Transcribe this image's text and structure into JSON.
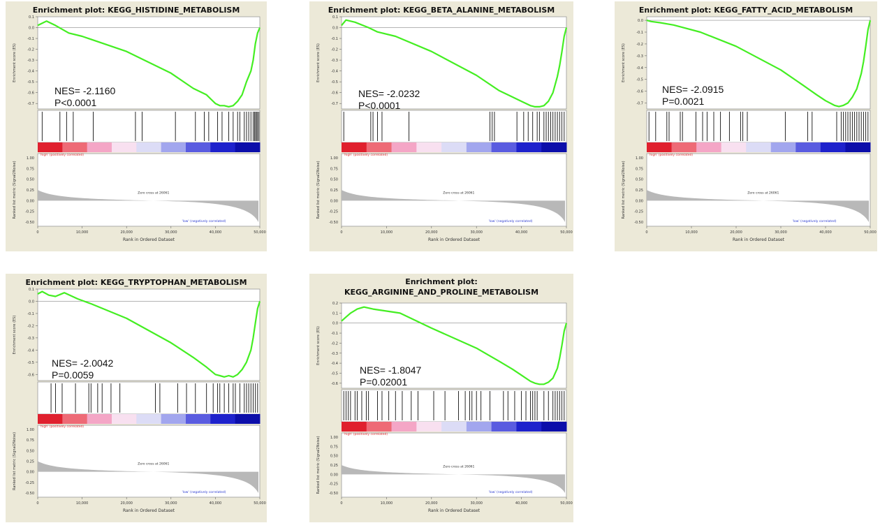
{
  "colors": {
    "panel_bg": "#ece9d8",
    "es_curve": "#44ee22",
    "positive_label": "#e03030",
    "negative_label": "#2a3ad0",
    "ranked_fill": "#b8b8b8",
    "gradient": [
      "#e0202e",
      "#ee6a76",
      "#f4a6c6",
      "#f8e0f0",
      "#dcdcf6",
      "#a2a6ee",
      "#5a5ce0",
      "#1e22cc",
      "#0c0eaa"
    ]
  },
  "shared_labels": {
    "es_ylabel": "Enrichment score (ES)",
    "rank_ylabel": "Ranked list metric (Signal2Noise)",
    "xlabel": "Rank in Ordered Dataset",
    "positive_label": "'high' (positively correlated)",
    "negative_label": "'low' (negatively correlated)",
    "zero_cross": "Zero cross at 26061"
  },
  "chart_data": [
    {
      "type": "line",
      "title": "Enrichment plot: KEGG_HISTIDINE_METABOLISM",
      "title_lines": [
        "Enrichment plot: KEGG_HISTIDINE_METABOLISM"
      ],
      "nes": "NES= -2.1160",
      "pval": "P<0.0001",
      "es_ylim": [
        -0.75,
        0.1
      ],
      "es_ticks": [
        "0.1",
        "0.0",
        "-0.1",
        "-0.2",
        "-0.3",
        "-0.4",
        "-0.5",
        "-0.6",
        "-0.7"
      ],
      "es_tick_values": [
        0.1,
        0.0,
        -0.1,
        -0.2,
        -0.3,
        -0.4,
        -0.5,
        -0.6,
        -0.7
      ],
      "x": [
        0,
        1000,
        2000,
        4000,
        7000,
        10000,
        20000,
        30000,
        35000,
        38000,
        39000,
        40000,
        41000,
        42000,
        43000,
        44000,
        45000,
        46000,
        47000,
        48000,
        48500,
        49000,
        49500,
        50000
      ],
      "es": [
        0.02,
        0.04,
        0.06,
        0.02,
        -0.05,
        -0.08,
        -0.22,
        -0.42,
        -0.56,
        -0.62,
        -0.66,
        -0.7,
        -0.72,
        -0.72,
        -0.73,
        -0.72,
        -0.68,
        -0.62,
        -0.5,
        -0.4,
        -0.3,
        -0.15,
        -0.05,
        0.0
      ],
      "hits": [
        1000,
        5000,
        6500,
        8000,
        12500,
        22000,
        23500,
        31000,
        35500,
        37500,
        38500,
        40500,
        41500,
        43000,
        44000,
        45000,
        45500,
        46500,
        47000,
        47500,
        48000,
        48500,
        48800,
        49000,
        49300,
        49500,
        49800
      ],
      "rank_ticks": [
        "1.00",
        "0.75",
        "0.50",
        "0.25",
        "0.00",
        "-0.25",
        "-0.50"
      ],
      "rank_tick_values": [
        1.0,
        0.75,
        0.5,
        0.25,
        0.0,
        -0.25,
        -0.5
      ],
      "x_ticks": [
        "0",
        "10,000",
        "20,000",
        "30,000",
        "40,000",
        "50,000"
      ],
      "x_tick_values": [
        0,
        10000,
        20000,
        30000,
        40000,
        50000
      ],
      "xlim": [
        0,
        50000
      ]
    },
    {
      "type": "line",
      "title": "Enrichment plot: KEGG_BETA_ALANINE_METABOLISM",
      "title_lines": [
        "Enrichment plot: KEGG_BETA_ALANINE_METABOLISM"
      ],
      "nes": "NES= -2.0232",
      "pval": "P<0.0001",
      "es_ylim": [
        -0.75,
        0.1
      ],
      "es_ticks": [
        "0.1",
        "0.0",
        "-0.1",
        "-0.2",
        "-0.3",
        "-0.4",
        "-0.5",
        "-0.6",
        "-0.7"
      ],
      "es_tick_values": [
        0.1,
        0.0,
        -0.1,
        -0.2,
        -0.3,
        -0.4,
        -0.5,
        -0.6,
        -0.7
      ],
      "x": [
        0,
        1000,
        3000,
        6000,
        8000,
        12000,
        20000,
        30000,
        35000,
        38000,
        40000,
        42000,
        43000,
        44000,
        45000,
        46000,
        47000,
        48000,
        48500,
        49000,
        49500,
        50000
      ],
      "es": [
        0.02,
        0.07,
        0.05,
        0.0,
        -0.04,
        -0.08,
        -0.22,
        -0.44,
        -0.58,
        -0.64,
        -0.68,
        -0.72,
        -0.73,
        -0.73,
        -0.72,
        -0.68,
        -0.6,
        -0.45,
        -0.35,
        -0.22,
        -0.08,
        0.0
      ],
      "hits": [
        500,
        6500,
        7000,
        8000,
        9000,
        15000,
        33000,
        33500,
        34000,
        39000,
        40500,
        41500,
        42500,
        43500,
        44000,
        45000,
        45500,
        46000,
        46500,
        47000,
        47500,
        48000,
        48500,
        49000,
        49500
      ],
      "rank_ticks": [
        "1.00",
        "0.75",
        "0.50",
        "0.25",
        "0.00",
        "-0.25",
        "-0.50"
      ],
      "rank_tick_values": [
        1.0,
        0.75,
        0.5,
        0.25,
        0.0,
        -0.25,
        -0.5
      ],
      "x_ticks": [
        "0",
        "10,000",
        "20,000",
        "30,000",
        "40,000",
        "50,000"
      ],
      "x_tick_values": [
        0,
        10000,
        20000,
        30000,
        40000,
        50000
      ],
      "xlim": [
        0,
        50000
      ]
    },
    {
      "type": "line",
      "title": "Enrichment plot: KEGG_FATTY_ACID_METABOLISM",
      "title_lines": [
        "Enrichment plot: KEGG_FATTY_ACID_METABOLISM"
      ],
      "nes": "NES= -2.0915",
      "pval": "P=0.0021",
      "es_ylim": [
        -0.75,
        0.03
      ],
      "es_ticks": [
        "0.0",
        "-0.1",
        "-0.2",
        "-0.3",
        "-0.4",
        "-0.5",
        "-0.6",
        "-0.7"
      ],
      "es_tick_values": [
        0.0,
        -0.1,
        -0.2,
        -0.3,
        -0.4,
        -0.5,
        -0.6,
        -0.7
      ],
      "x": [
        0,
        1000,
        3000,
        6000,
        8000,
        12000,
        20000,
        30000,
        35000,
        38000,
        40000,
        42000,
        43000,
        44000,
        45000,
        46000,
        47000,
        48000,
        48500,
        49000,
        49500,
        50000
      ],
      "es": [
        0.0,
        -0.01,
        -0.02,
        -0.04,
        -0.06,
        -0.1,
        -0.22,
        -0.42,
        -0.55,
        -0.63,
        -0.68,
        -0.72,
        -0.73,
        -0.72,
        -0.7,
        -0.65,
        -0.58,
        -0.45,
        -0.35,
        -0.22,
        -0.08,
        0.0
      ],
      "hits": [
        500,
        2000,
        4500,
        5000,
        7500,
        8000,
        11000,
        12500,
        13500,
        15000,
        16500,
        18500,
        21000,
        21500,
        22500,
        31000,
        36000,
        37000,
        42500,
        43500,
        44000,
        44500,
        45000,
        45500,
        46000,
        46500,
        47000,
        47500,
        48000,
        48500,
        49000,
        49500
      ],
      "rank_ticks": [
        "1.00",
        "0.75",
        "0.50",
        "0.25",
        "0.00",
        "-0.25",
        "-0.50"
      ],
      "rank_tick_values": [
        1.0,
        0.75,
        0.5,
        0.25,
        0.0,
        -0.25,
        -0.5
      ],
      "x_ticks": [
        "0",
        "10,000",
        "20,000",
        "30,000",
        "40,000",
        "50,000"
      ],
      "x_tick_values": [
        0,
        10000,
        20000,
        30000,
        40000,
        50000
      ],
      "xlim": [
        0,
        50000
      ]
    },
    {
      "type": "line",
      "title": "Enrichment plot: KEGG_TRYPTOPHAN_METABOLISM",
      "title_lines": [
        "Enrichment plot: KEGG_TRYPTOPHAN_METABOLISM"
      ],
      "nes": "NES= -2.0042",
      "pval": "P=0.0059",
      "es_ylim": [
        -0.65,
        0.1
      ],
      "es_ticks": [
        "0.1",
        "0.0",
        "-0.1",
        "-0.2",
        "-0.3",
        "-0.4",
        "-0.5",
        "-0.6"
      ],
      "es_tick_values": [
        0.1,
        0.0,
        -0.1,
        -0.2,
        -0.3,
        -0.4,
        -0.5,
        -0.6
      ],
      "x": [
        0,
        1000,
        2500,
        4000,
        6000,
        9000,
        12000,
        20000,
        30000,
        35000,
        38000,
        40000,
        41000,
        42000,
        43000,
        44000,
        45000,
        46000,
        47000,
        48000,
        48500,
        49000,
        49500,
        50000
      ],
      "es": [
        0.06,
        0.08,
        0.05,
        0.04,
        0.07,
        0.02,
        -0.02,
        -0.14,
        -0.34,
        -0.46,
        -0.54,
        -0.6,
        -0.61,
        -0.62,
        -0.61,
        -0.62,
        -0.6,
        -0.56,
        -0.5,
        -0.4,
        -0.3,
        -0.18,
        -0.06,
        0.0
      ],
      "hits": [
        3000,
        4000,
        5500,
        8500,
        11500,
        12000,
        13500,
        14500,
        16500,
        18500,
        26500,
        27500,
        31500,
        33500,
        35500,
        38000,
        39500,
        40500,
        41000,
        42000,
        43000,
        44000,
        44500,
        45500,
        46500,
        47000,
        47500,
        48000,
        48500,
        49000,
        49500
      ],
      "rank_ticks": [
        "1.00",
        "0.75",
        "0.50",
        "0.25",
        "0.00",
        "-0.25",
        "-0.50"
      ],
      "rank_tick_values": [
        1.0,
        0.75,
        0.5,
        0.25,
        0.0,
        -0.25,
        -0.5
      ],
      "x_ticks": [
        "0",
        "10,000",
        "20,000",
        "30,000",
        "40,000",
        "50,000"
      ],
      "x_tick_values": [
        0,
        10000,
        20000,
        30000,
        40000,
        50000
      ],
      "xlim": [
        0,
        50000
      ]
    },
    {
      "type": "line",
      "title": "Enrichment plot: KEGG_ARGININE_AND_PROLINE_METABOLISM",
      "title_lines": [
        "Enrichment plot:",
        "KEGG_ARGININE_AND_PROLINE_METABOLISM"
      ],
      "nes": "NES= -1.8047",
      "pval": "P=0.02001",
      "es_ylim": [
        -0.65,
        0.2
      ],
      "es_ticks": [
        "0.2",
        "0.1",
        "0.0",
        "-0.1",
        "-0.2",
        "-0.3",
        "-0.4",
        "-0.5",
        "-0.6"
      ],
      "es_tick_values": [
        0.2,
        0.1,
        0.0,
        -0.1,
        -0.2,
        -0.3,
        -0.4,
        -0.5,
        -0.6
      ],
      "x": [
        0,
        1000,
        2000,
        3500,
        5000,
        7000,
        10000,
        13000,
        20000,
        30000,
        35000,
        38000,
        40000,
        42000,
        43000,
        44000,
        45000,
        46000,
        47000,
        48000,
        48500,
        49000,
        49500,
        50000
      ],
      "es": [
        0.02,
        0.06,
        0.1,
        0.14,
        0.16,
        0.14,
        0.12,
        0.1,
        -0.05,
        -0.25,
        -0.38,
        -0.46,
        -0.52,
        -0.58,
        -0.6,
        -0.61,
        -0.61,
        -0.59,
        -0.55,
        -0.45,
        -0.35,
        -0.22,
        -0.08,
        0.0
      ],
      "hits": [
        500,
        1000,
        1500,
        2000,
        3000,
        3500,
        4500,
        5500,
        6000,
        8000,
        9000,
        10500,
        12000,
        13500,
        15500,
        17000,
        20500,
        23000,
        26000,
        27500,
        28500,
        29000,
        30000,
        31000,
        33000,
        36000,
        37000,
        38500,
        40000,
        41000,
        42000,
        42500,
        43000,
        43500,
        45000,
        46000,
        47000,
        47500,
        48000,
        48500,
        49000,
        49500
      ],
      "rank_ticks": [
        "1.00",
        "0.75",
        "0.50",
        "0.25",
        "0.00",
        "-0.25",
        "-0.50"
      ],
      "rank_tick_values": [
        1.0,
        0.75,
        0.5,
        0.25,
        0.0,
        -0.25,
        -0.5
      ],
      "x_ticks": [
        "0",
        "10,000",
        "20,000",
        "30,000",
        "40,000",
        "50,000"
      ],
      "x_tick_values": [
        0,
        10000,
        20000,
        30000,
        40000,
        50000
      ],
      "xlim": [
        0,
        50000
      ]
    }
  ]
}
